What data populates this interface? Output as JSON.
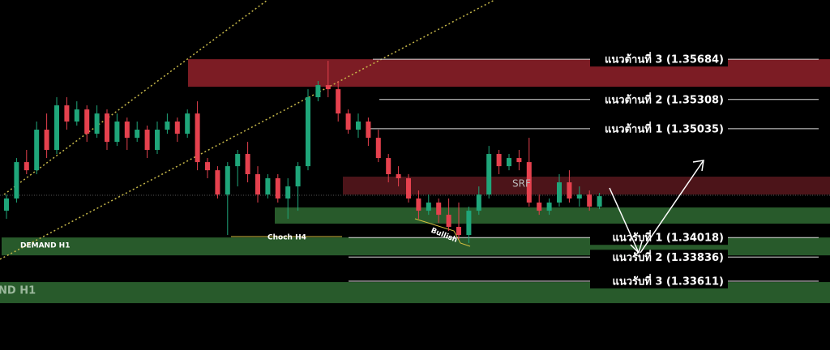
{
  "chart_data": {
    "type": "candlestick",
    "ylim": [
      1.32968,
      1.36237
    ],
    "up_color": "#1fa67a",
    "down_color": "#e5414e",
    "open": [
      1.34269,
      1.34383,
      1.34723,
      1.34647,
      1.35026,
      1.34837,
      1.35253,
      1.35102,
      1.35215,
      1.34988,
      1.35177,
      1.34912,
      1.35102,
      1.3495,
      1.35026,
      1.34837,
      1.35026,
      1.35102,
      1.34988,
      1.35177,
      1.34723,
      1.34647,
      1.3442,
      1.34685,
      1.34799,
      1.3461,
      1.3442,
      1.34572,
      1.34383,
      1.34496,
      1.34685,
      1.35329,
      1.35442,
      1.35404,
      1.35177,
      1.35026,
      1.35102,
      1.3495,
      1.34761,
      1.3461,
      1.34572,
      1.34383,
      1.34269,
      1.34345,
      1.34231,
      1.34118,
      1.34042,
      1.34269,
      1.3442,
      1.34799,
      1.34685,
      1.34761,
      1.34723,
      1.34345,
      1.34269,
      1.34345,
      1.34534,
      1.34383,
      1.3442,
      1.34307
    ],
    "high": [
      1.3442,
      1.34761,
      1.34837,
      1.35102,
      1.35177,
      1.35329,
      1.35329,
      1.35291,
      1.35253,
      1.35253,
      1.35215,
      1.35177,
      1.35139,
      1.35102,
      1.35064,
      1.35102,
      1.35177,
      1.35139,
      1.35215,
      1.35291,
      1.34761,
      1.34685,
      1.34723,
      1.34837,
      1.34912,
      1.34685,
      1.3461,
      1.3461,
      1.34572,
      1.34723,
      1.35404,
      1.3548,
      1.35669,
      1.3548,
      1.35215,
      1.35177,
      1.35139,
      1.35026,
      1.34799,
      1.34685,
      1.3461,
      1.34458,
      1.3442,
      1.34383,
      1.34383,
      1.34345,
      1.34307,
      1.34496,
      1.34874,
      1.34837,
      1.34799,
      1.34837,
      1.3495,
      1.3442,
      1.34383,
      1.3461,
      1.34647,
      1.34496,
      1.34458,
      1.34435
    ],
    "low": [
      1.34193,
      1.34345,
      1.3461,
      1.3461,
      1.34761,
      1.34799,
      1.35026,
      1.35064,
      1.34912,
      1.3495,
      1.34837,
      1.34874,
      1.34837,
      1.34912,
      1.34761,
      1.34799,
      1.34988,
      1.34912,
      1.3495,
      1.34647,
      1.34572,
      1.34383,
      1.34042,
      1.34496,
      1.34534,
      1.34345,
      1.34383,
      1.34345,
      1.34193,
      1.34269,
      1.34647,
      1.35291,
      1.35329,
      1.35102,
      1.34988,
      1.3495,
      1.34874,
      1.34723,
      1.34534,
      1.34496,
      1.34345,
      1.34193,
      1.34231,
      1.34155,
      1.3408,
      1.34004,
      1.33966,
      1.34231,
      1.34383,
      1.3461,
      1.34647,
      1.34647,
      1.34307,
      1.34231,
      1.34231,
      1.34307,
      1.34345,
      1.34307,
      1.34269,
      1.34284
    ],
    "close": [
      1.34383,
      1.34723,
      1.34647,
      1.35026,
      1.34837,
      1.35253,
      1.35102,
      1.35215,
      1.34988,
      1.35177,
      1.34912,
      1.35102,
      1.3495,
      1.35026,
      1.34837,
      1.35026,
      1.35102,
      1.34988,
      1.35177,
      1.34723,
      1.34647,
      1.3442,
      1.34685,
      1.34799,
      1.3461,
      1.3442,
      1.34572,
      1.34383,
      1.34496,
      1.34685,
      1.35329,
      1.35442,
      1.35404,
      1.35177,
      1.35026,
      1.35102,
      1.3495,
      1.34761,
      1.3461,
      1.34572,
      1.34383,
      1.34269,
      1.34345,
      1.34231,
      1.34118,
      1.34042,
      1.34269,
      1.3442,
      1.34799,
      1.34685,
      1.34761,
      1.34723,
      1.34345,
      1.34269,
      1.34345,
      1.34534,
      1.34383,
      1.3442,
      1.34307,
      1.34405
    ],
    "zones": [
      {
        "high": 1.35684,
        "low": 1.35427,
        "color": "#7c1c24"
      },
      {
        "high": 1.34587,
        "low": 1.3442,
        "color": "#4c1419"
      },
      {
        "high": 1.34299,
        "low": 1.34148,
        "color": "#285a2b"
      },
      {
        "high": 1.34019,
        "low": 1.33852,
        "color": "#285a2b"
      },
      {
        "high": 1.33603,
        "low": 1.33406,
        "color": "#285a2b"
      }
    ],
    "levels": [
      {
        "label": "แนวต้านที่ 3 (1.35684)",
        "value": 1.35684
      },
      {
        "label": "แนวต้านที่ 2 (1.35308)",
        "value": 1.35308
      },
      {
        "label": "แนวต้านที่ 1 (1.35035)",
        "value": 1.35035
      },
      {
        "label": "แนวรับที่ 1 (1.34018)",
        "value": 1.34018
      },
      {
        "label": "แนวรับที่ 2 (1.33836)",
        "value": 1.33836
      },
      {
        "label": "แนวรับที่ 3 (1.33611)",
        "value": 1.33611
      }
    ],
    "annotations": [
      "DEMAND H1",
      "ND H1",
      "Choch H4",
      "Bullish",
      "SRF"
    ]
  }
}
